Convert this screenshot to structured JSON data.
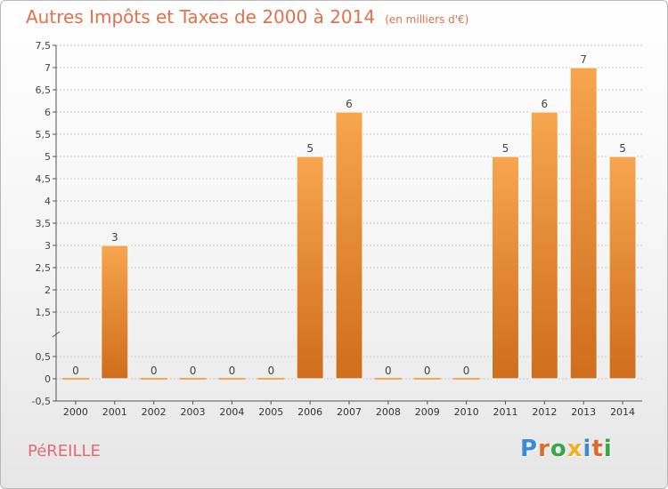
{
  "header": {
    "title": "Autres Impôts et Taxes de 2000 à 2014",
    "subtitle": "(en milliers d'€)"
  },
  "commune": "PéREILLE",
  "logo": {
    "text": "Proxiti",
    "colors": [
      "#3d8ad6",
      "#e06a2a",
      "#3aa64a",
      "#f0b020",
      "#3d8ad6",
      "#e06a2a",
      "#3aa64a"
    ]
  },
  "colors": {
    "bar_light": "#f7a54f",
    "bar_dark": "#cf6d1c",
    "grid": "#c8c8c8"
  },
  "chart_data": {
    "type": "bar",
    "categories": [
      "2000",
      "2001",
      "2002",
      "2003",
      "2004",
      "2005",
      "2006",
      "2007",
      "2008",
      "2009",
      "2010",
      "2011",
      "2012",
      "2013",
      "2014"
    ],
    "values": [
      0,
      3,
      0,
      0,
      0,
      0,
      5,
      6,
      0,
      0,
      0,
      5,
      6,
      7,
      5
    ],
    "value_labels": [
      "0",
      "3",
      "0",
      "0",
      "0",
      "0",
      "5",
      "6",
      "0",
      "0",
      "0",
      "5",
      "6",
      "7",
      "5"
    ],
    "yticks": [
      -0.5,
      0,
      0.5,
      1.5,
      2,
      2.5,
      3,
      3.5,
      4,
      4.5,
      5,
      5.5,
      6,
      6.5,
      7,
      7.5
    ],
    "ytick_labels": [
      "-0,5",
      "0",
      "0,5",
      "1,5",
      "2",
      "2,5",
      "3",
      "3,5",
      "4",
      "4,5",
      "5",
      "5,5",
      "6",
      "6,5",
      "7",
      "7,5"
    ],
    "ylim": [
      -0.5,
      7.5
    ],
    "grid": true,
    "xlabel": "",
    "ylabel": ""
  }
}
